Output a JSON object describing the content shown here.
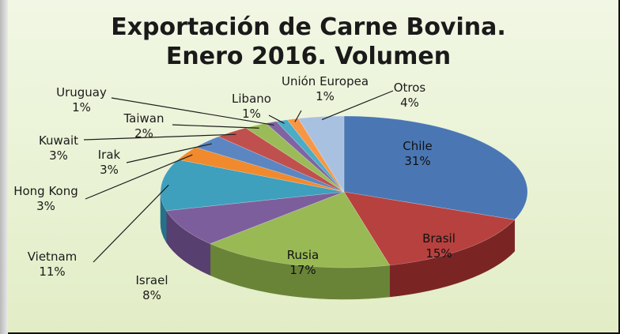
{
  "chart_data": {
    "type": "pie",
    "title_line1": "Exportación de Carne Bovina.",
    "title_line2": "Enero 2016. Volumen",
    "slices": [
      {
        "name": "Chile",
        "value": 31,
        "label": "31%",
        "color": "#4a77b3",
        "side": "#2f5485"
      },
      {
        "name": "Brasil",
        "value": 15,
        "label": "15%",
        "color": "#b7413e",
        "side": "#7a2524"
      },
      {
        "name": "Rusia",
        "value": 17,
        "label": "17%",
        "color": "#98b954",
        "side": "#6a8437"
      },
      {
        "name": "Israel",
        "value": 8,
        "label": "8%",
        "color": "#7d5e9c",
        "side": "#573f70"
      },
      {
        "name": "Vietnam",
        "value": 11,
        "label": "11%",
        "color": "#3ea0bd",
        "side": "#26718a"
      },
      {
        "name": "Hong Kong",
        "value": 3,
        "label": "3%",
        "color": "#f08a2d",
        "side": "#b0601a"
      },
      {
        "name": "Irak",
        "value": 3,
        "label": "3%",
        "color": "#5b86c2",
        "side": "#3e6291"
      },
      {
        "name": "Kuwait",
        "value": 3,
        "label": "3%",
        "color": "#c0504d",
        "side": "#863634"
      },
      {
        "name": "Taiwan",
        "value": 2,
        "label": "2%",
        "color": "#9bbb59",
        "side": "#6d873c"
      },
      {
        "name": "Uruguay",
        "value": 1,
        "label": "1%",
        "color": "#8064a2",
        "side": "#5a4575"
      },
      {
        "name": "Libano",
        "value": 1,
        "label": "1%",
        "color": "#4bacc6",
        "side": "#33798e"
      },
      {
        "name": "Unión Europea",
        "value": 1,
        "label": "1%",
        "color": "#f79646",
        "side": "#b46a2d"
      },
      {
        "name": "Otros",
        "value": 4,
        "label": "4%",
        "color": "#a9c1e0",
        "side": "#7b93b4"
      }
    ]
  }
}
